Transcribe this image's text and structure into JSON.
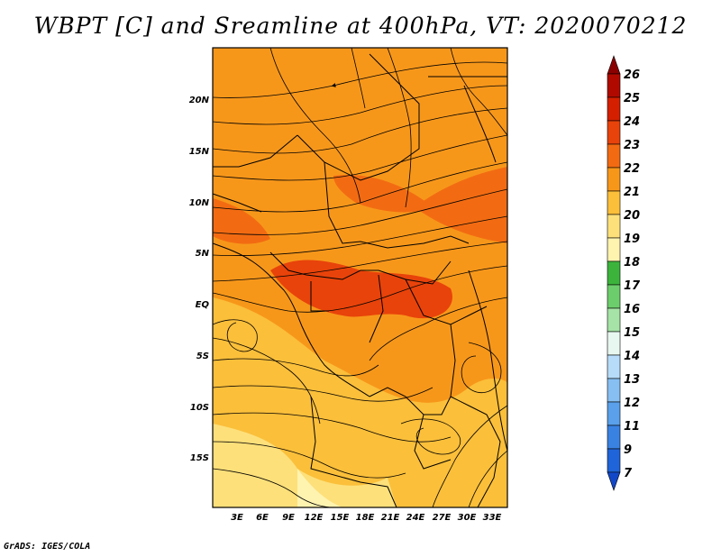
{
  "title": "WBPT [C] and Sreamline at 400hPa, VT: 2020070212",
  "footer": "GrADS: IGES/COLA",
  "map": {
    "lat_labels": [
      "20N",
      "15N",
      "10N",
      "5N",
      "EQ",
      "5S",
      "10S",
      "15S"
    ],
    "lon_labels": [
      "3E",
      "6E",
      "9E",
      "12E",
      "15E",
      "18E",
      "21E",
      "24E",
      "27E",
      "30E",
      "33E"
    ]
  },
  "colorbar": {
    "levels": [
      "26",
      "25",
      "24",
      "23",
      "22",
      "21",
      "20",
      "19",
      "18",
      "17",
      "16",
      "15",
      "14",
      "13",
      "12",
      "11",
      "9",
      "7"
    ],
    "colors": [
      "#8b0000",
      "#b00a00",
      "#d42000",
      "#e8430a",
      "#f26b12",
      "#f7971a",
      "#fbbf3a",
      "#fde07a",
      "#fff3b0",
      "#3cb43c",
      "#6ccd6c",
      "#a6e3a6",
      "#e8f8f0",
      "#b7dcfa",
      "#87bff2",
      "#5aa0ea",
      "#3a82e2",
      "#1f64d8",
      "#1248c8"
    ]
  }
}
